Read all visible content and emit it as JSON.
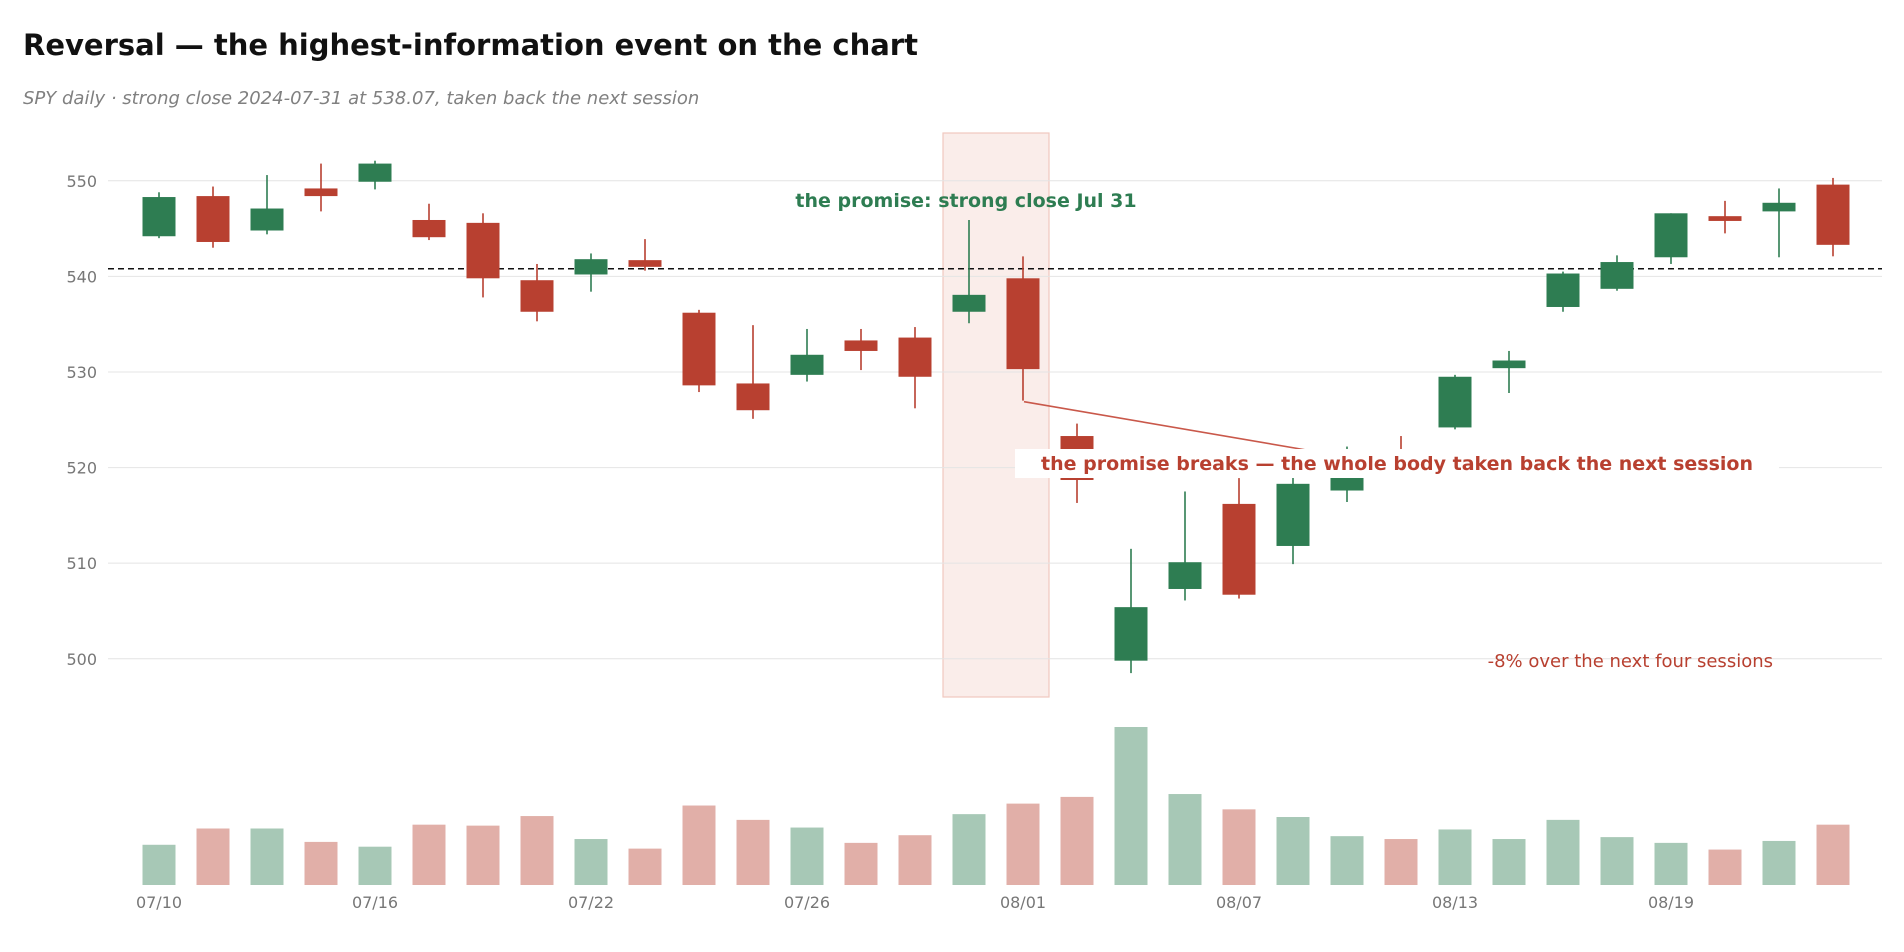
{
  "chart_data": {
    "type": "candlestick",
    "title": "Reversal — the highest-information event on the chart",
    "subtitle": "SPY daily · strong close 2024-07-31 at 538.07, taken back the next session",
    "ylim": [
      496,
      555
    ],
    "y_ticks": [
      500,
      510,
      520,
      530,
      540,
      550
    ],
    "reference_line": {
      "value": 540.8,
      "style": "dashed",
      "color": "#111111"
    },
    "x_tick_labels": [
      {
        "index": 0,
        "label": "07/10"
      },
      {
        "index": 4,
        "label": "07/16"
      },
      {
        "index": 8,
        "label": "07/22"
      },
      {
        "index": 12,
        "label": "07/26"
      },
      {
        "index": 16,
        "label": "08/01"
      },
      {
        "index": 20,
        "label": "08/07"
      },
      {
        "index": 24,
        "label": "08/13"
      },
      {
        "index": 28,
        "label": "08/19"
      }
    ],
    "highlight_range": {
      "from_index": 15,
      "to_index": 16
    },
    "up_color": "#2e7d52",
    "down_color": "#b84030",
    "candles": [
      {
        "o": 544.2,
        "h": 548.8,
        "l": 544.0,
        "c": 548.3,
        "v": 42
      },
      {
        "o": 548.4,
        "h": 549.4,
        "l": 543.0,
        "c": 543.6,
        "v": 59
      },
      {
        "o": 544.8,
        "h": 550.6,
        "l": 544.4,
        "c": 547.1,
        "v": 59
      },
      {
        "o": 549.2,
        "h": 551.8,
        "l": 546.8,
        "c": 548.4,
        "v": 45
      },
      {
        "o": 549.9,
        "h": 552.1,
        "l": 549.1,
        "c": 551.8,
        "v": 40
      },
      {
        "o": 545.9,
        "h": 547.6,
        "l": 543.8,
        "c": 544.1,
        "v": 63
      },
      {
        "o": 545.6,
        "h": 546.6,
        "l": 537.8,
        "c": 539.8,
        "v": 62
      },
      {
        "o": 539.6,
        "h": 541.3,
        "l": 535.3,
        "c": 536.3,
        "v": 72
      },
      {
        "o": 540.2,
        "h": 542.4,
        "l": 538.4,
        "c": 541.8,
        "v": 48
      },
      {
        "o": 541.7,
        "h": 543.9,
        "l": 540.6,
        "c": 541.0,
        "v": 38
      },
      {
        "o": 536.2,
        "h": 536.5,
        "l": 527.9,
        "c": 528.6,
        "v": 83
      },
      {
        "o": 528.8,
        "h": 534.9,
        "l": 525.1,
        "c": 526.0,
        "v": 68
      },
      {
        "o": 529.7,
        "h": 534.5,
        "l": 529.0,
        "c": 531.8,
        "v": 60
      },
      {
        "o": 533.3,
        "h": 534.5,
        "l": 530.2,
        "c": 532.2,
        "v": 44
      },
      {
        "o": 533.6,
        "h": 534.7,
        "l": 526.2,
        "c": 529.5,
        "v": 52
      },
      {
        "o": 536.3,
        "h": 545.9,
        "l": 535.1,
        "c": 538.07,
        "v": 74
      },
      {
        "o": 539.8,
        "h": 542.1,
        "l": 527.0,
        "c": 530.3,
        "v": 85
      },
      {
        "o": 523.3,
        "h": 524.6,
        "l": 516.3,
        "c": 518.7,
        "v": 92
      },
      {
        "o": 499.8,
        "h": 511.5,
        "l": 498.5,
        "c": 505.4,
        "v": 165
      },
      {
        "o": 507.3,
        "h": 517.5,
        "l": 506.1,
        "c": 510.1,
        "v": 95
      },
      {
        "o": 516.2,
        "h": 518.9,
        "l": 506.3,
        "c": 506.7,
        "v": 79
      },
      {
        "o": 511.8,
        "h": 519.2,
        "l": 509.9,
        "c": 518.3,
        "v": 71
      },
      {
        "o": 517.6,
        "h": 522.2,
        "l": 516.4,
        "c": 520.8,
        "v": 51
      },
      {
        "o": 521.9,
        "h": 523.3,
        "l": 519.0,
        "c": 521.4,
        "v": 48
      },
      {
        "o": 524.2,
        "h": 529.7,
        "l": 524.0,
        "c": 529.5,
        "v": 58
      },
      {
        "o": 530.4,
        "h": 532.2,
        "l": 527.8,
        "c": 531.2,
        "v": 48
      },
      {
        "o": 536.8,
        "h": 540.5,
        "l": 536.3,
        "c": 540.3,
        "v": 68
      },
      {
        "o": 538.7,
        "h": 542.2,
        "l": 538.5,
        "c": 541.5,
        "v": 50
      },
      {
        "o": 542.0,
        "h": 546.6,
        "l": 541.3,
        "c": 546.6,
        "v": 44
      },
      {
        "o": 546.3,
        "h": 547.9,
        "l": 544.5,
        "c": 545.8,
        "v": 37
      },
      {
        "o": 546.8,
        "h": 549.2,
        "l": 542.0,
        "c": 547.7,
        "v": 46
      },
      {
        "o": 549.6,
        "h": 550.3,
        "l": 542.1,
        "c": 543.3,
        "v": 63
      }
    ],
    "annotations": {
      "promise": "the promise: strong close Jul 31",
      "breaks": "the promise breaks — the whole body taken back the next session",
      "drop": "-8% over the next four sessions"
    }
  }
}
